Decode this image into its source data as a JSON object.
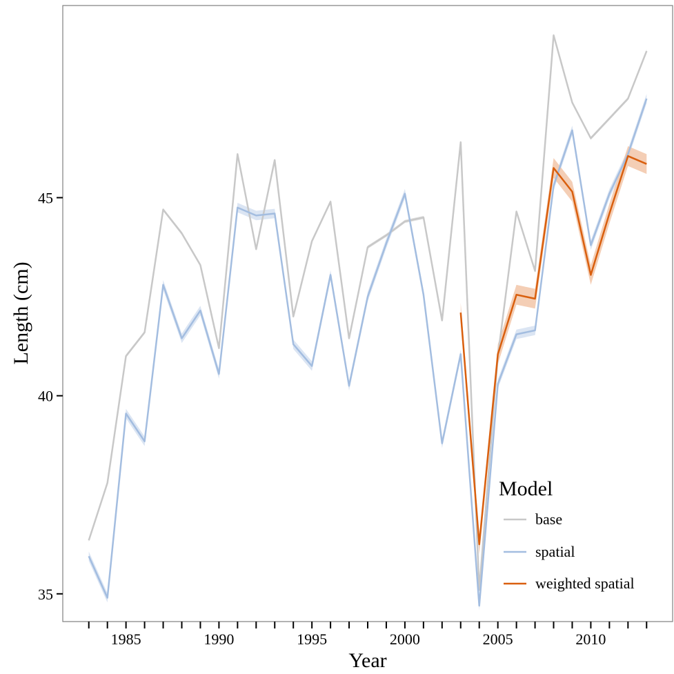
{
  "chart_data": {
    "type": "line",
    "title": "",
    "xlabel": "Year",
    "ylabel": "Length (cm)",
    "xlim": [
      1981.6,
      2014.4
    ],
    "ylim": [
      34.3,
      49.85
    ],
    "xticks": [
      1985,
      1990,
      1995,
      2000,
      2005,
      2010
    ],
    "xtick_labels": [
      "1985",
      "1990",
      "1995",
      "2000",
      "2005",
      "2010"
    ],
    "yticks": [
      35,
      40,
      45
    ],
    "ytick_labels": [
      "35",
      "40",
      "45"
    ],
    "minor_x_ticks_every_year": true,
    "grid": false,
    "legend": {
      "title": "Model",
      "position": "bottom-right inside",
      "entries": [
        "base",
        "spatial",
        "weighted spatial"
      ]
    },
    "series": [
      {
        "name": "base",
        "color": "#c8c8c8",
        "band_color": "#dddddd",
        "band_halfwidth": 0.04,
        "x": [
          1983,
          1984,
          1985,
          1986,
          1987,
          1988,
          1989,
          1990,
          1991,
          1992,
          1993,
          1994,
          1995,
          1996,
          1997,
          1998,
          1999,
          2000,
          2001,
          2002,
          2003,
          2004,
          2005,
          2006,
          2007,
          2008,
          2009,
          2010,
          2011,
          2012,
          2013
        ],
        "y": [
          36.35,
          37.8,
          41.0,
          41.6,
          44.7,
          44.1,
          43.3,
          41.2,
          46.1,
          43.7,
          45.95,
          42.0,
          43.9,
          44.9,
          41.45,
          43.75,
          44.05,
          44.4,
          44.5,
          41.9,
          46.4,
          35.1,
          41.0,
          44.65,
          43.15,
          49.1,
          47.4,
          46.5,
          47.0,
          47.5,
          48.7
        ]
      },
      {
        "name": "spatial",
        "color": "#a3bde0",
        "band_color": "#d5e1f1",
        "band_halfwidth": 0.12,
        "x": [
          1983,
          1984,
          1985,
          1986,
          1987,
          1988,
          1989,
          1990,
          1991,
          1992,
          1993,
          1994,
          1995,
          1996,
          1997,
          1998,
          1999,
          2000,
          2001,
          2002,
          2003,
          2004,
          2005,
          2006,
          2007,
          2008,
          2009,
          2010,
          2011,
          2012,
          2013
        ],
        "y": [
          35.95,
          34.9,
          39.55,
          38.85,
          42.8,
          41.45,
          42.15,
          40.55,
          44.75,
          44.55,
          44.6,
          41.3,
          40.75,
          43.05,
          40.25,
          42.5,
          43.85,
          45.1,
          42.55,
          38.8,
          41.05,
          34.7,
          40.3,
          41.55,
          41.65,
          45.3,
          46.7,
          43.8,
          45.1,
          46.1,
          47.5
        ]
      },
      {
        "name": "weighted spatial",
        "color": "#d95f0e",
        "band_color": "#f2c6a8",
        "band_halfwidth": 0.25,
        "x": [
          2003,
          2004,
          2005,
          2006,
          2007,
          2008,
          2009,
          2010,
          2011,
          2012,
          2013
        ],
        "y": [
          42.1,
          36.25,
          41.05,
          42.55,
          42.45,
          45.75,
          45.15,
          43.05,
          44.6,
          46.05,
          45.85
        ]
      }
    ]
  }
}
